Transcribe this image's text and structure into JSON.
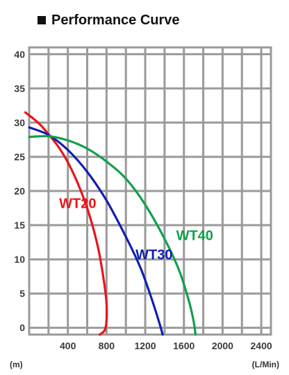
{
  "header": {
    "title": "Performance Curve"
  },
  "chart_data": {
    "type": "line",
    "title": "Performance Curve",
    "xlabel": "(L/Min)",
    "ylabel": "(m)",
    "xlim": [
      0,
      2500
    ],
    "ylim": [
      -1,
      41
    ],
    "grid": true,
    "x_ticks": [
      400,
      800,
      1200,
      1600,
      2000,
      2400
    ],
    "y_ticks": [
      0,
      5,
      10,
      15,
      20,
      25,
      30,
      35,
      40
    ],
    "series": [
      {
        "name": "WT20",
        "color": "#e8141c",
        "points": [
          [
            -40,
            31.5
          ],
          [
            100,
            29.9
          ],
          [
            200,
            28.3
          ],
          [
            300,
            26.5
          ],
          [
            400,
            24.2
          ],
          [
            500,
            21.2
          ],
          [
            600,
            17.5
          ],
          [
            700,
            12.5
          ],
          [
            760,
            8.0
          ],
          [
            800,
            3.5
          ],
          [
            790,
            0
          ],
          [
            730,
            -1.0
          ]
        ]
      },
      {
        "name": "WT30",
        "color": "#1020b0",
        "points": [
          [
            0,
            29.3
          ],
          [
            200,
            28.2
          ],
          [
            400,
            26.0
          ],
          [
            600,
            22.8
          ],
          [
            800,
            18.6
          ],
          [
            1000,
            13.3
          ],
          [
            1150,
            8.8
          ],
          [
            1260,
            4.5
          ],
          [
            1340,
            1.0
          ],
          [
            1380,
            -1.0
          ]
        ]
      },
      {
        "name": "WT40",
        "color": "#12a04a",
        "points": [
          [
            0,
            27.9
          ],
          [
            200,
            28.0
          ],
          [
            400,
            27.4
          ],
          [
            600,
            26.2
          ],
          [
            800,
            24.3
          ],
          [
            1000,
            21.8
          ],
          [
            1200,
            18.0
          ],
          [
            1400,
            13.0
          ],
          [
            1550,
            8.4
          ],
          [
            1650,
            4.0
          ],
          [
            1700,
            1.0
          ],
          [
            1720,
            -1.0
          ]
        ]
      }
    ],
    "annotations": [
      {
        "text": "WT20",
        "x": 310,
        "y": 17.5,
        "color": "#e8141c"
      },
      {
        "text": "WT30",
        "x": 1100,
        "y": 10.0,
        "color": "#1020b0"
      },
      {
        "text": "WT40",
        "x": 1520,
        "y": 12.8,
        "color": "#12a04a"
      }
    ]
  }
}
